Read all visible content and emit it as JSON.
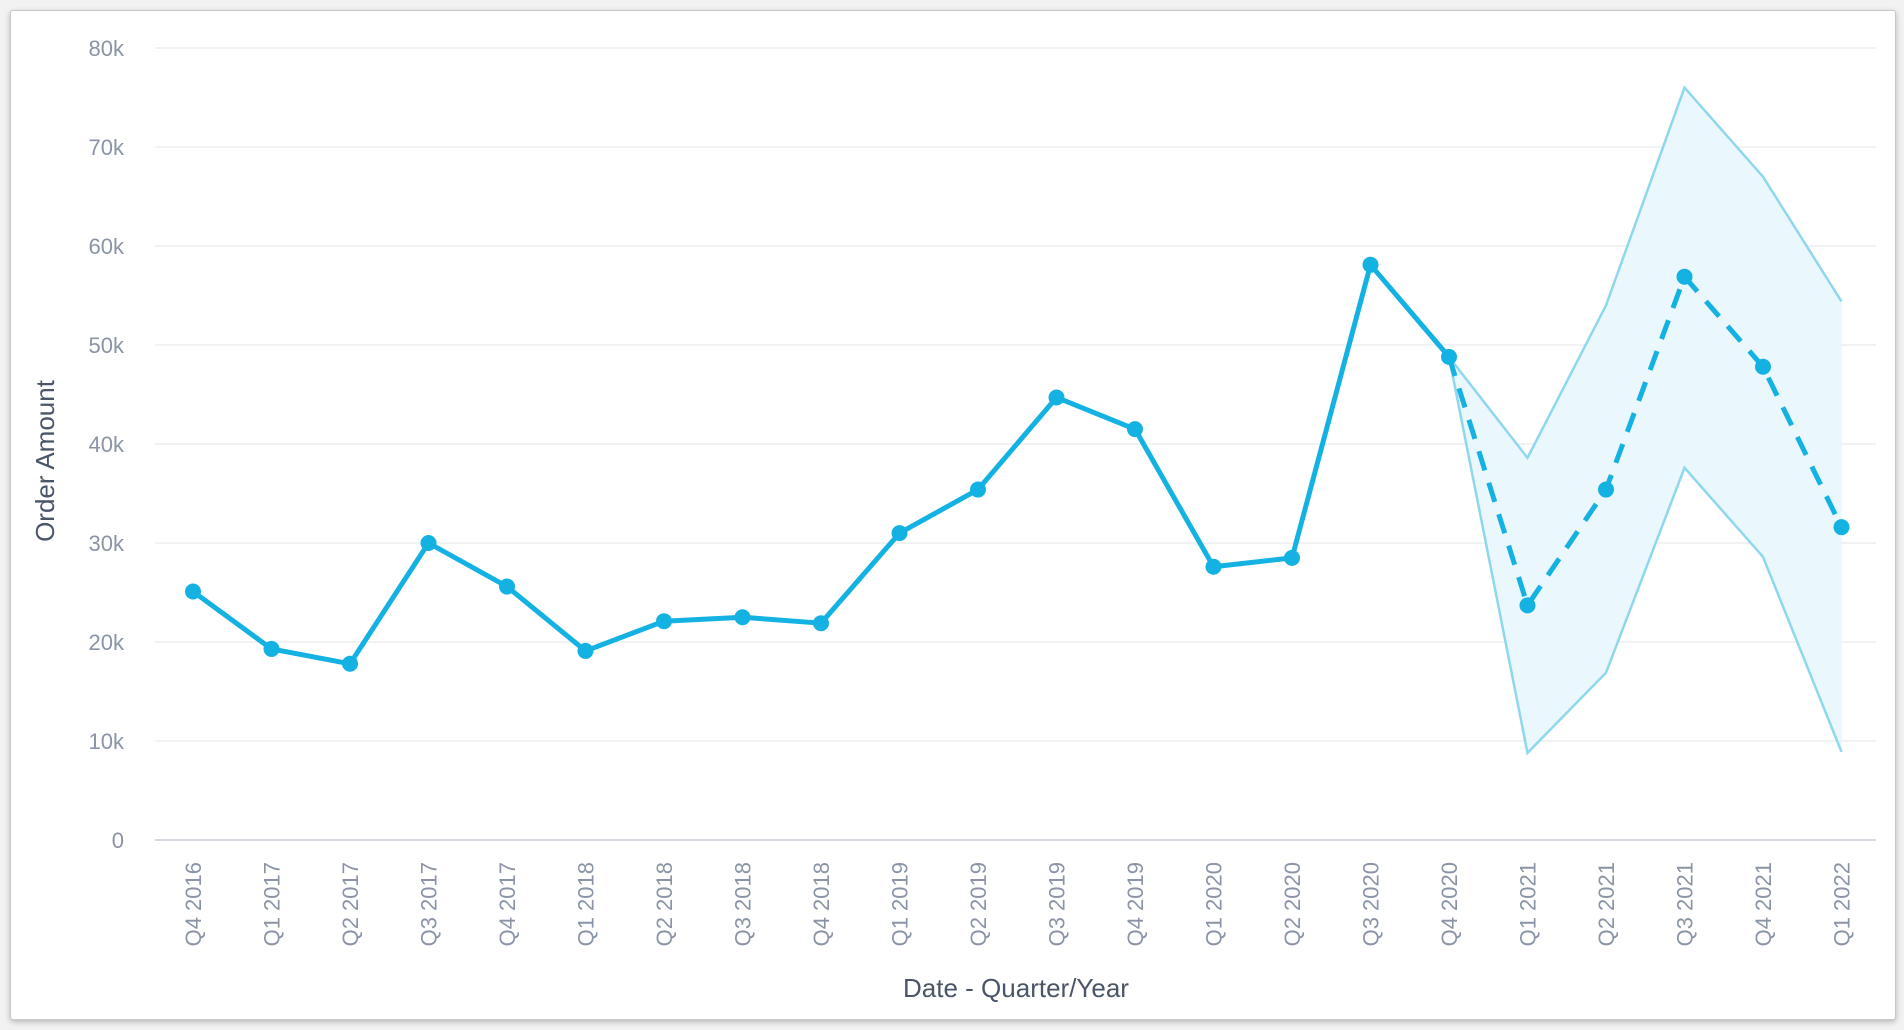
{
  "chart_data": {
    "type": "line",
    "xlabel": "Date - Quarter/Year",
    "ylabel": "Order Amount",
    "ylim": [
      0,
      80000
    ],
    "grid": true,
    "yticks": [
      {
        "value": 0,
        "label": "0"
      },
      {
        "value": 10000,
        "label": "10k"
      },
      {
        "value": 20000,
        "label": "20k"
      },
      {
        "value": 30000,
        "label": "30k"
      },
      {
        "value": 40000,
        "label": "40k"
      },
      {
        "value": 50000,
        "label": "50k"
      },
      {
        "value": 60000,
        "label": "60k"
      },
      {
        "value": 70000,
        "label": "70k"
      },
      {
        "value": 80000,
        "label": "80k"
      }
    ],
    "categories": [
      "Q4 2016",
      "Q1 2017",
      "Q2 2017",
      "Q3 2017",
      "Q4 2017",
      "Q1 2018",
      "Q2 2018",
      "Q3 2018",
      "Q4 2018",
      "Q1 2019",
      "Q2 2019",
      "Q3 2019",
      "Q4 2019",
      "Q1 2020",
      "Q2 2020",
      "Q3 2020",
      "Q4 2020",
      "Q1 2021",
      "Q2 2021",
      "Q3 2021",
      "Q4 2021",
      "Q1 2022"
    ],
    "series": [
      {
        "values": [
          25100,
          19300,
          17800,
          30000,
          25600,
          19100,
          22100,
          22500,
          21900,
          31000,
          35400,
          44700,
          41500,
          27600,
          28500,
          58100,
          48800,
          null,
          null,
          null,
          null,
          null
        ],
        "style": "solid",
        "color": "#14b2e2"
      },
      {
        "values": [
          null,
          null,
          null,
          null,
          null,
          null,
          null,
          null,
          null,
          null,
          null,
          null,
          null,
          null,
          null,
          null,
          48800,
          23700,
          35400,
          56900,
          47800,
          31600
        ],
        "style": "dashed",
        "color": "#14b2e2",
        "band_upper": [
          null,
          null,
          null,
          null,
          null,
          null,
          null,
          null,
          null,
          null,
          null,
          null,
          null,
          null,
          null,
          null,
          48800,
          38600,
          54000,
          76000,
          67000,
          54400
        ],
        "band_lower": [
          null,
          null,
          null,
          null,
          null,
          null,
          null,
          null,
          null,
          null,
          null,
          null,
          null,
          null,
          null,
          null,
          48800,
          8800,
          16900,
          37600,
          28600,
          8900
        ],
        "band_line_color": "#8ed7ef",
        "band_fill_color": "#eaf7fc"
      }
    ]
  }
}
